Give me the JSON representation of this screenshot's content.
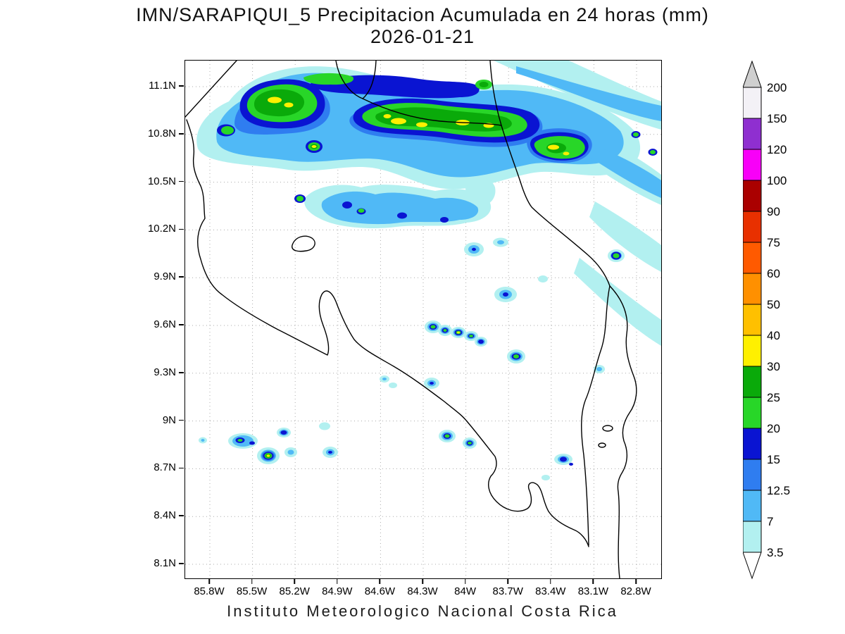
{
  "title": {
    "line1": "IMN/SARAPIQUI_5 Precipitacion Acumulada en 24 horas (mm)",
    "line2": "2026-01-21"
  },
  "footer": "Instituto Meteorologico Nacional Costa Rica",
  "chart_data": {
    "type": "heatmap",
    "subtype": "filled-contour precipitation map",
    "title": "IMN/SARAPIQUI_5 Precipitacion Acumulada en 24 horas (mm)",
    "date": "2026-01-21",
    "units": "mm",
    "region": "Costa Rica and vicinity",
    "source_text": "Instituto Meteorologico Nacional Costa Rica",
    "grid": "dotted",
    "x_axis": {
      "ticks": [
        "85.8W",
        "85.5W",
        "85.2W",
        "84.9W",
        "84.6W",
        "84.3W",
        "84W",
        "83.7W",
        "83.4W",
        "83.1W",
        "82.8W"
      ],
      "range": [
        "85.97W",
        "82.63W"
      ]
    },
    "y_axis": {
      "ticks": [
        "8.1N",
        "8.4N",
        "8.7N",
        "9N",
        "9.3N",
        "9.6N",
        "9.9N",
        "10.2N",
        "10.5N",
        "10.8N",
        "11.1N"
      ],
      "range": [
        "8.0N",
        "11.26N"
      ]
    },
    "colorbar": {
      "units": "mm",
      "levels": [
        3.5,
        7,
        12.5,
        15,
        20,
        25,
        30,
        40,
        50,
        60,
        75,
        90,
        100,
        120,
        150,
        200
      ],
      "colors": [
        "#b2f0f0",
        "#50b9f6",
        "#2f7df0",
        "#0a14d2",
        "#28d628",
        "#0aaa0a",
        "#fff000",
        "#ffc000",
        "#ff9000",
        "#ff5a00",
        "#e83000",
        "#aa0000",
        "#f800f8",
        "#8f2fd0",
        "#f3f1f6"
      ],
      "under_color": "#ffffff",
      "over_color": "#cfcfcf",
      "arrow_ends": true,
      "position": "right"
    },
    "precip_maxima": [
      {
        "lat": "10.9N",
        "lon": "85.35W",
        "max_mm": "30-40"
      },
      {
        "lat": "10.85N",
        "lon": "84.55W to 83.9W",
        "max_mm": "30-40"
      },
      {
        "lat": "10.75N",
        "lon": "83.4W",
        "max_mm": "30-40"
      },
      {
        "lat": "10.7N",
        "lon": "85.05W",
        "max_mm": "30-40"
      },
      {
        "lat": "10.4N",
        "lon": "84.7W",
        "max_mm": "15-25"
      },
      {
        "lat": "10.1N",
        "lon": "83.3W",
        "max_mm": "20-25"
      },
      {
        "lat": "9.55N",
        "lon": "84.25W to 83.9W",
        "max_mm": "20-30"
      },
      {
        "lat": "9.4N",
        "lon": "83.65W",
        "max_mm": "20-25"
      },
      {
        "lat": "8.8N",
        "lon": "85.4W",
        "max_mm": "30-40"
      },
      {
        "lat": "8.9N",
        "lon": "84.2W",
        "max_mm": "20-25"
      },
      {
        "lat": "8.85N",
        "lon": "83.3W",
        "max_mm": "15-20"
      }
    ],
    "description": "Heavy band of 15-40 mm accumulated precipitation across northern Costa Rica (10.5N-11.2N) with yellow 30-40 mm cores; light 3.5-12.5 mm diagonal streaks over the Caribbean (east edge); scattered 15-30 mm convective cells over the central valley and the southern Pacific coast; most of the interior dry (<3.5 mm, white)."
  }
}
